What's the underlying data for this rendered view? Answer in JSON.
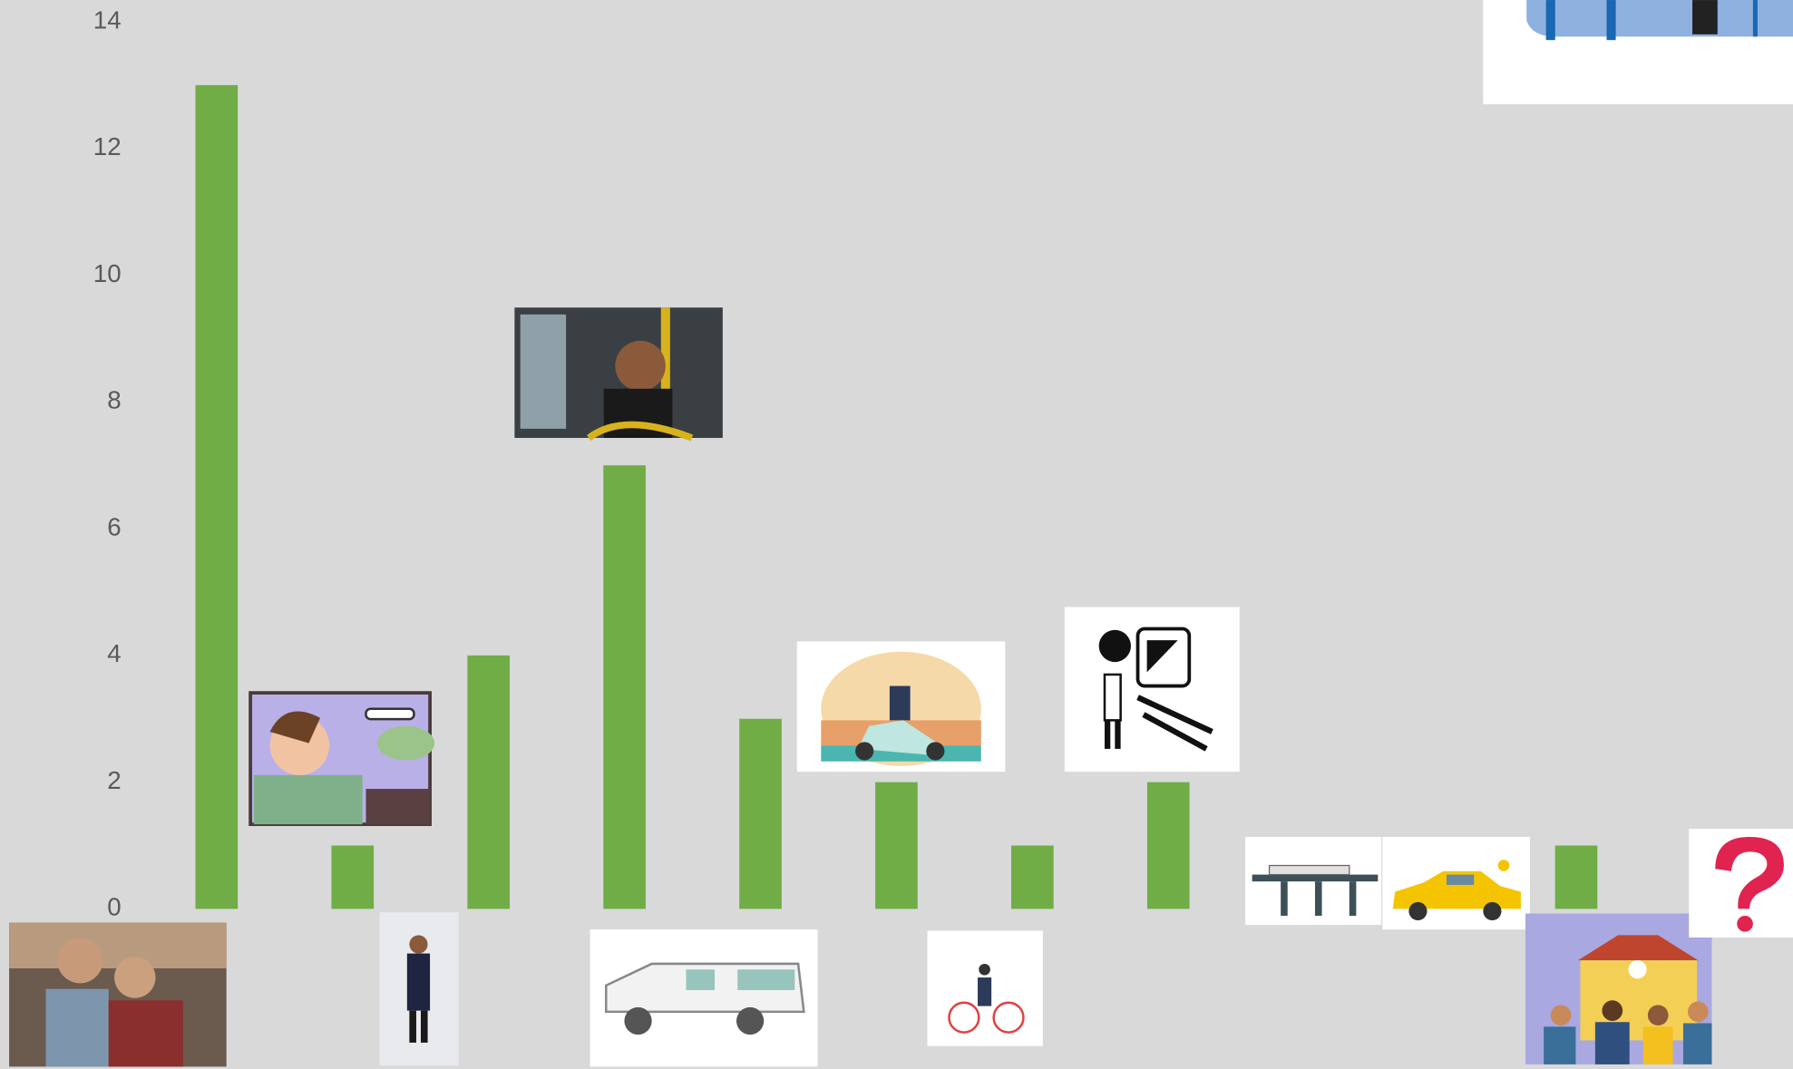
{
  "chart_data": {
    "type": "bar",
    "categories": [
      null,
      null,
      null,
      null,
      null,
      null,
      null,
      null,
      null,
      null,
      null,
      null
    ],
    "values": [
      13,
      1,
      4,
      7,
      3,
      2,
      1,
      2,
      0,
      0,
      1,
      0
    ],
    "color": "#70ad47",
    "ylim": [
      0,
      14
    ],
    "yticks": [
      0,
      2,
      4,
      6,
      8,
      10,
      12,
      14
    ],
    "grid": false
  }
}
